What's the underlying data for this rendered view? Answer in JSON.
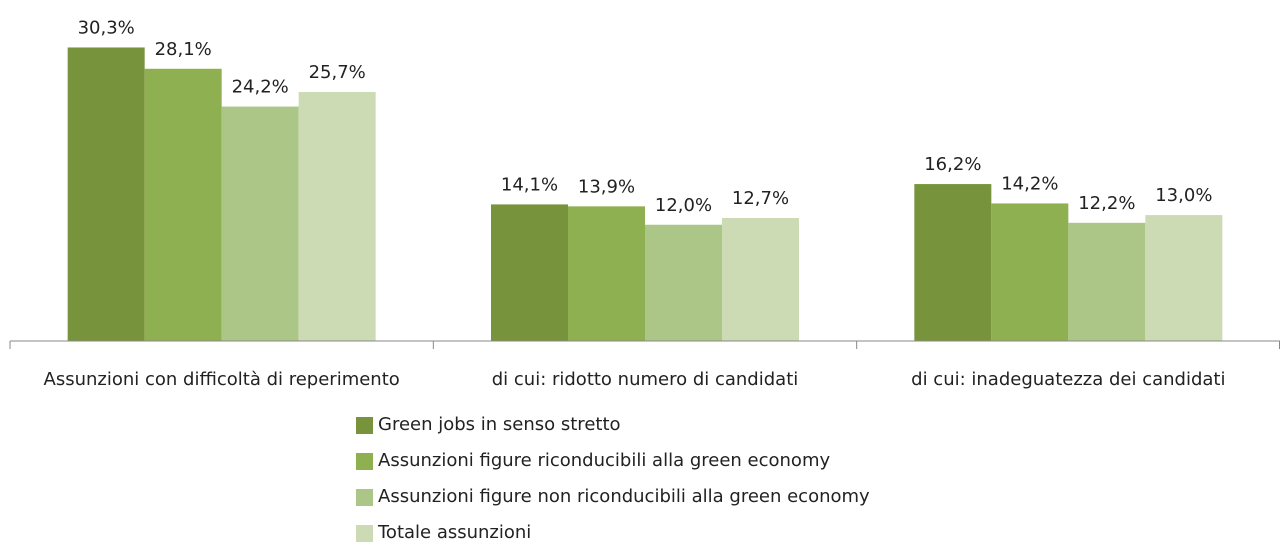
{
  "chart_data": {
    "type": "bar",
    "categories": [
      "Assunzioni con difficoltà di reperimento",
      "di cui: ridotto numero di candidati",
      "di cui: inadeguatezza dei candidati"
    ],
    "series": [
      {
        "name": "Green jobs in senso stretto",
        "color": "#77933c",
        "values": [
          30.3,
          14.1,
          16.2
        ],
        "value_labels": [
          "30,3%",
          "14,1%",
          "16,2%"
        ]
      },
      {
        "name": "Assunzioni figure riconducibili alla green economy",
        "color": "#8fb050",
        "values": [
          28.1,
          13.9,
          14.2
        ],
        "value_labels": [
          "28,1%",
          "13,9%",
          "14,2%"
        ]
      },
      {
        "name": "Assunzioni figure non riconducibili alla green economy",
        "color": "#abc686",
        "values": [
          24.2,
          12.0,
          12.2
        ],
        "value_labels": [
          "24,2%",
          "12,0%",
          "12,2%"
        ]
      },
      {
        "name": "Totale assunzioni",
        "color": "#cddbb4",
        "values": [
          25.7,
          12.7,
          13.0
        ],
        "value_labels": [
          "25,7%",
          "12,7%",
          "13,0%"
        ]
      }
    ],
    "ylim": [
      0,
      32
    ],
    "legend": "bottom"
  }
}
